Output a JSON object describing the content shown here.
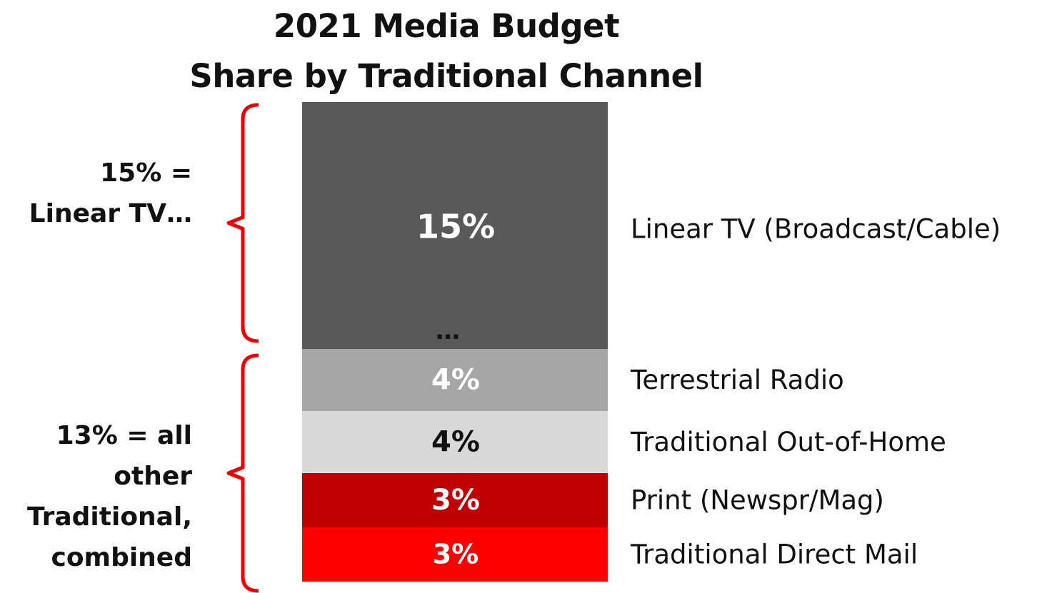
{
  "chart_data": {
    "type": "bar",
    "title": "2021 Media Budget",
    "subtitle": "Share by Traditional Channel",
    "stacked": true,
    "categories": [
      "Linear TV (Broadcast/Cable)",
      "Terrestrial Radio",
      "Traditional Out-of-Home",
      "Print (Newspr/Mag)",
      "Traditional Direct Mail"
    ],
    "values": [
      15,
      4,
      4,
      3,
      3
    ],
    "data_labels": [
      "15%",
      "4%",
      "4%",
      "3%",
      "3%"
    ],
    "colors": [
      "#595959",
      "#a6a6a6",
      "#d9d9d9",
      "#c00000",
      "#ff0000"
    ],
    "label_colors": [
      "#ffffff",
      "#ffffff",
      "#111111",
      "#ffffff",
      "#ffffff"
    ],
    "truncation_marker": "…",
    "brackets": [
      {
        "lines": [
          "15% =",
          "Linear TV…"
        ],
        "segments": [
          0
        ]
      },
      {
        "lines": [
          "13% = all",
          "other",
          "Traditional,",
          "combined"
        ],
        "segments": [
          1,
          2,
          3,
          4
        ]
      }
    ],
    "bracket_color": "#ee0000"
  }
}
